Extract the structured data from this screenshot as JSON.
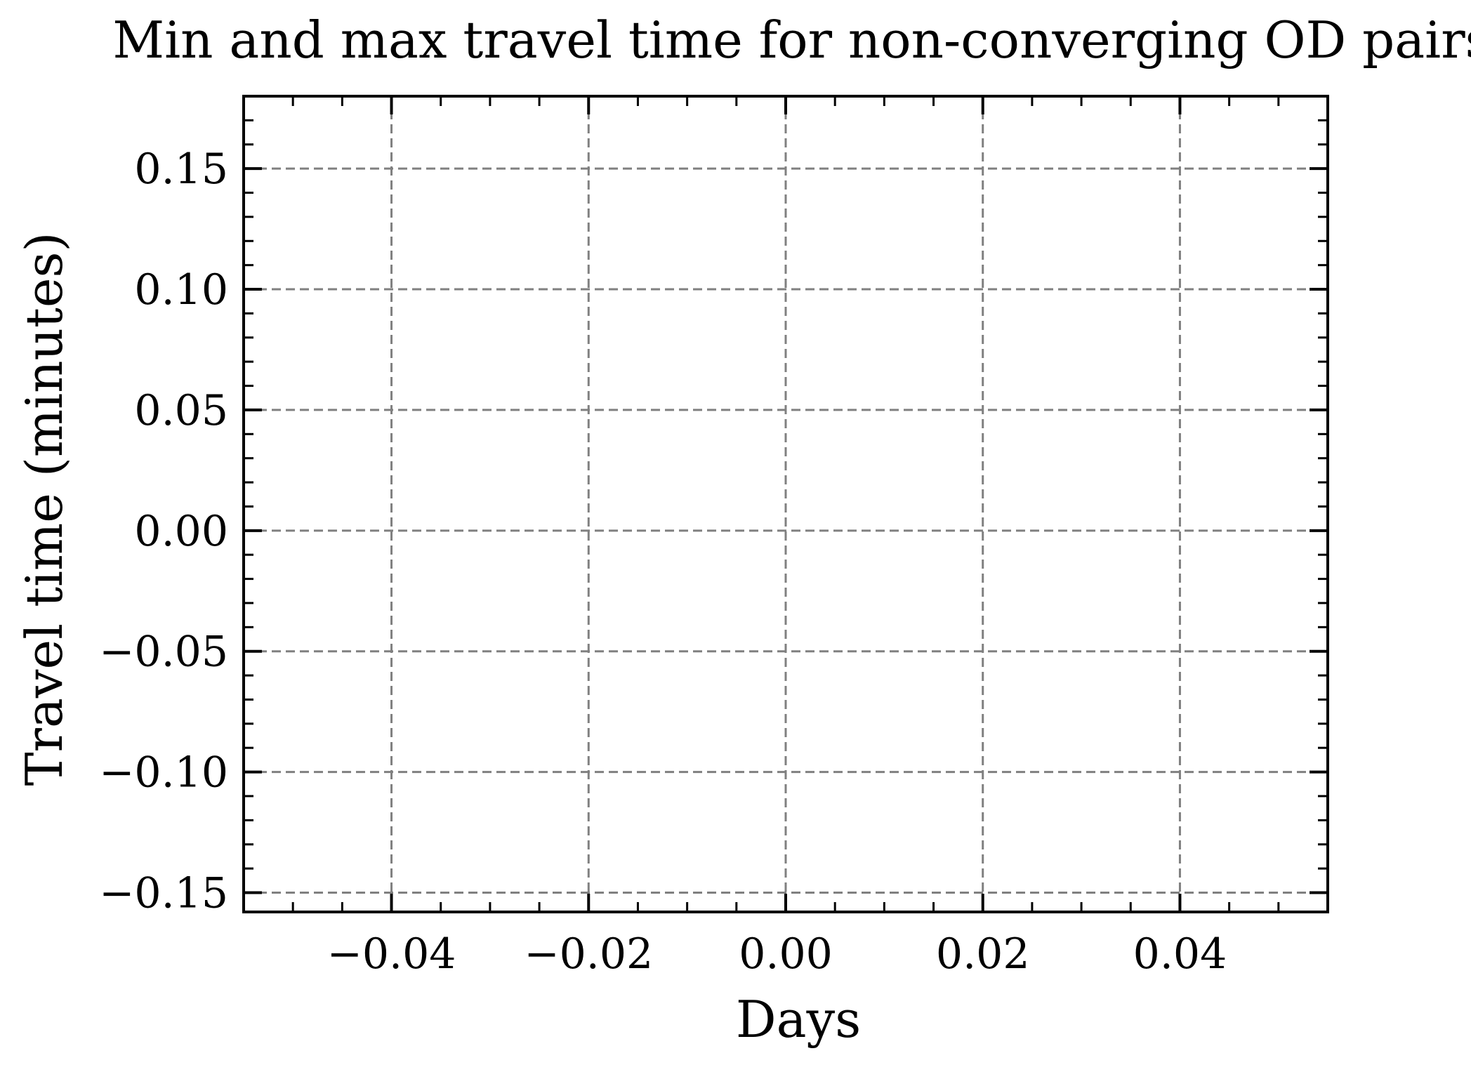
{
  "chart_data": {
    "type": "line",
    "title": "Min and max travel time for non-converging OD pairs",
    "xlabel": "Days",
    "ylabel": "Travel time (minutes)",
    "series": [],
    "xlim": [
      -0.055,
      0.055
    ],
    "ylim": [
      -0.158,
      0.18
    ],
    "x_ticks": [
      -0.04,
      -0.02,
      0.0,
      0.02,
      0.04
    ],
    "x_tick_labels": [
      "−0.04",
      "−0.02",
      "0.00",
      "0.02",
      "0.04"
    ],
    "x_minor_step": 0.005,
    "y_ticks": [
      -0.15,
      -0.1,
      -0.05,
      0.0,
      0.05,
      0.1,
      0.15
    ],
    "y_tick_labels": [
      "−0.15",
      "−0.10",
      "−0.05",
      "0.00",
      "0.05",
      "0.10",
      "0.15"
    ],
    "y_minor_step": 0.01,
    "grid": true,
    "grid_style": "dashed",
    "grid_color": "#808080",
    "frame_color": "#000000",
    "background_color": "#ffffff"
  }
}
